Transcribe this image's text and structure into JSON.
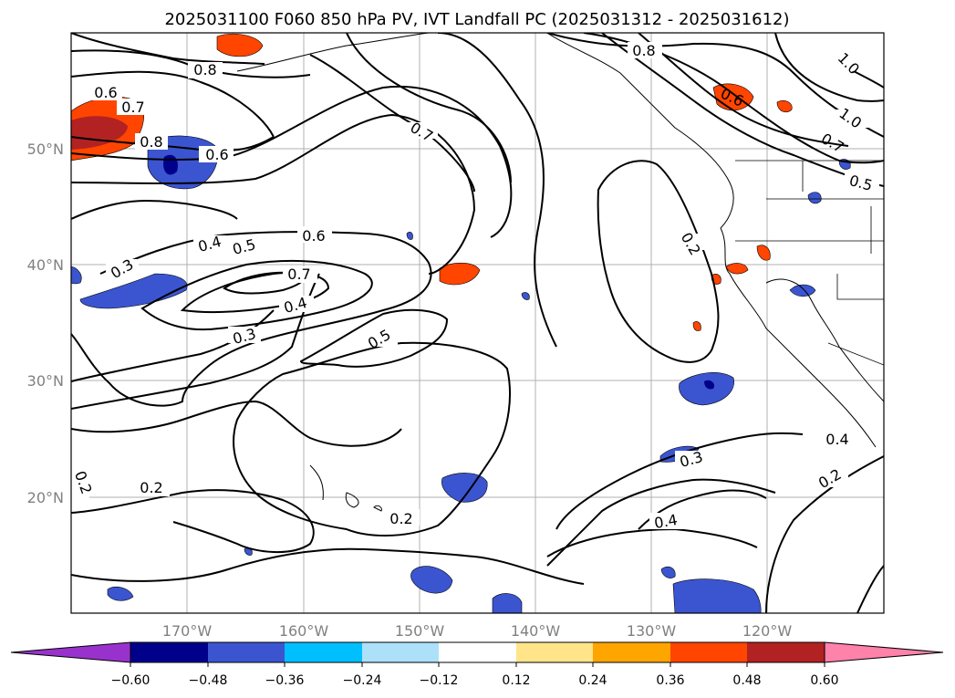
{
  "title": "2025031100 F060 850 hPa PV, IVT Landfall PC (2025031312 - 2025031612)",
  "map": {
    "lon_labels": [
      "170°W",
      "160°W",
      "150°W",
      "140°W",
      "130°W",
      "120°W"
    ],
    "lat_labels": [
      "50°N",
      "40°N",
      "30°N",
      "20°N"
    ],
    "contour_labels": [
      "1.0",
      "1.0",
      "0.8",
      "0.8",
      "0.8",
      "0.7",
      "0.7",
      "0.7",
      "0.6",
      "0.6",
      "0.6",
      "0.6",
      "0.5",
      "0.5",
      "0.5",
      "0.4",
      "0.4",
      "0.4",
      "0.4",
      "0.3",
      "0.3",
      "0.3",
      "0.2",
      "0.2",
      "0.2",
      "0.2",
      "0.2",
      "0.7"
    ],
    "colors": {
      "neg_0_60": "#9932cc",
      "neg_0_48": "#00008b",
      "neg_0_36": "#3b55d1",
      "neg_0_24": "#00bfff",
      "neg_0_12": "#ade1fa",
      "zero": "#ffffff",
      "pos_0_12": "#ffe48a",
      "pos_0_24": "#ffa500",
      "pos_0_36": "#ff4500",
      "pos_0_48": "#b22222",
      "pos_0_60": "#ff82ab"
    }
  },
  "colorbar": {
    "ticks": [
      "−0.60",
      "−0.48",
      "−0.36",
      "−0.24",
      "−0.12",
      "0.12",
      "0.24",
      "0.36",
      "0.48",
      "0.60"
    ],
    "colors": [
      "#9932cc",
      "#00008b",
      "#3b55d1",
      "#00bfff",
      "#ade1fa",
      "#ffffff",
      "#ffe48a",
      "#ffa500",
      "#ff4500",
      "#b22222",
      "#ff82ab"
    ]
  }
}
